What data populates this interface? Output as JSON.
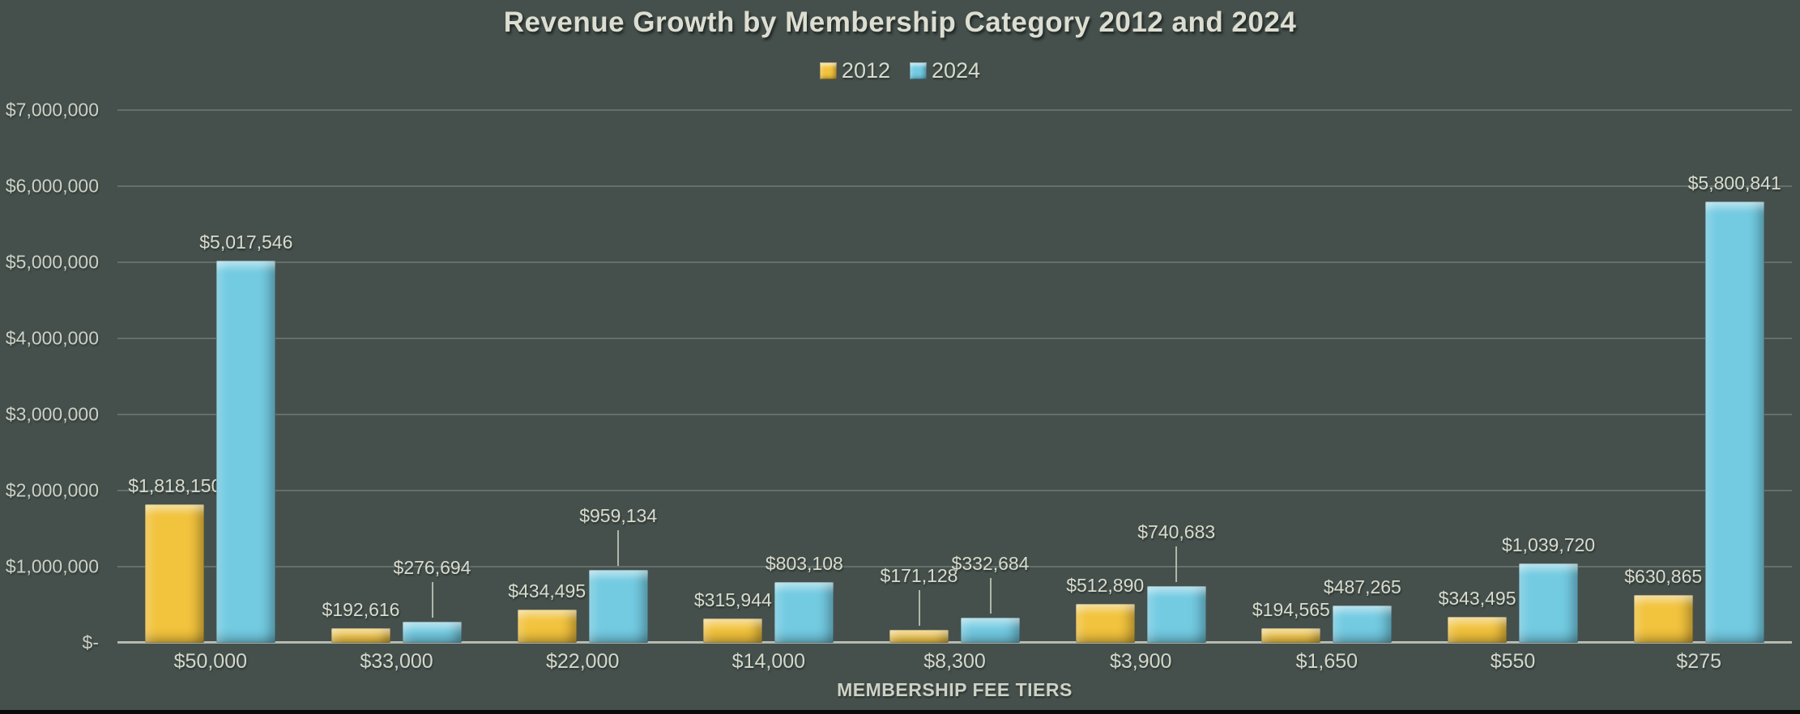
{
  "title": "Revenue Growth by Membership Category 2012 and 2024",
  "x_axis_title": "MEMBERSHIP FEE TIERS",
  "colors": {
    "background": "#45504d",
    "text": "#d7dbcc",
    "series_2012": "#f2c33d",
    "series_2024": "#73cbe2",
    "gridline": "rgba(212,222,212,0.22)",
    "baseline": "#b5bab0"
  },
  "chart_data": {
    "type": "bar",
    "title": "Revenue Growth by Membership Category 2012 and 2024",
    "xlabel": "MEMBERSHIP FEE TIERS",
    "ylabel": "",
    "ylim": [
      0,
      7000000
    ],
    "grid": true,
    "legend_position": "top-center",
    "categories": [
      "$50,000",
      "$33,000",
      "$22,000",
      "$14,000",
      "$8,300",
      "$3,900",
      "$1,650",
      "$550",
      "$275"
    ],
    "y_ticks": [
      {
        "label": "$7,000,000",
        "value": 7000000
      },
      {
        "label": "$6,000,000",
        "value": 6000000
      },
      {
        "label": "$5,000,000",
        "value": 5000000
      },
      {
        "label": "$4,000,000",
        "value": 4000000
      },
      {
        "label": "$3,000,000",
        "value": 3000000
      },
      {
        "label": "$2,000,000",
        "value": 2000000
      },
      {
        "label": "$1,000,000",
        "value": 1000000
      },
      {
        "label": "$-",
        "value": 0
      }
    ],
    "series": [
      {
        "name": "2012",
        "color": "#f2c33d",
        "values": [
          1818150,
          192616,
          434495,
          315944,
          171128,
          512890,
          194565,
          343495,
          630865
        ],
        "labels": [
          "$1,818,150",
          "$192,616",
          "$434,495",
          "$315,944",
          "$171,128",
          "$512,890",
          "$194,565",
          "$343,495",
          "$630,865"
        ],
        "leader_lines": [
          false,
          false,
          false,
          false,
          true,
          false,
          false,
          false,
          false
        ]
      },
      {
        "name": "2024",
        "color": "#73cbe2",
        "values": [
          5017546,
          276694,
          959134,
          803108,
          332684,
          740683,
          487265,
          1039720,
          5800841
        ],
        "labels": [
          "$5,017,546",
          "$276,694",
          "$959,134",
          "$803,108",
          "$332,684",
          "$740,683",
          "$487,265",
          "$1,039,720",
          "$5,800,841"
        ],
        "leader_lines": [
          false,
          true,
          true,
          false,
          true,
          true,
          false,
          false,
          false
        ]
      }
    ]
  }
}
